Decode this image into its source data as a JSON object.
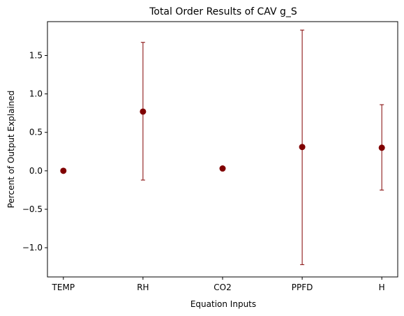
{
  "chart_data": {
    "type": "scatter",
    "title": "Total Order Results of CAV g_S",
    "xlabel": "Equation Inputs",
    "ylabel": "Percent of Output Explained",
    "categories": [
      "TEMP",
      "RH",
      "CO2",
      "PPFD",
      "H"
    ],
    "series": [
      {
        "values": [
          0.0,
          0.77,
          0.03,
          0.31,
          0.3
        ],
        "error_low": [
          0.0,
          -0.12,
          0.03,
          -1.22,
          -0.25
        ],
        "error_high": [
          0.0,
          1.67,
          0.03,
          1.83,
          0.86
        ],
        "color": "#800000"
      }
    ],
    "ylim": [
      -1.38,
      1.94
    ],
    "yticks": [
      -1.0,
      -0.5,
      0.0,
      0.5,
      1.0,
      1.5
    ],
    "ytick_labels": [
      "−1.0",
      "−0.5",
      "0.0",
      "0.5",
      "1.0",
      "1.5"
    ],
    "grid": false,
    "legend": "none"
  }
}
